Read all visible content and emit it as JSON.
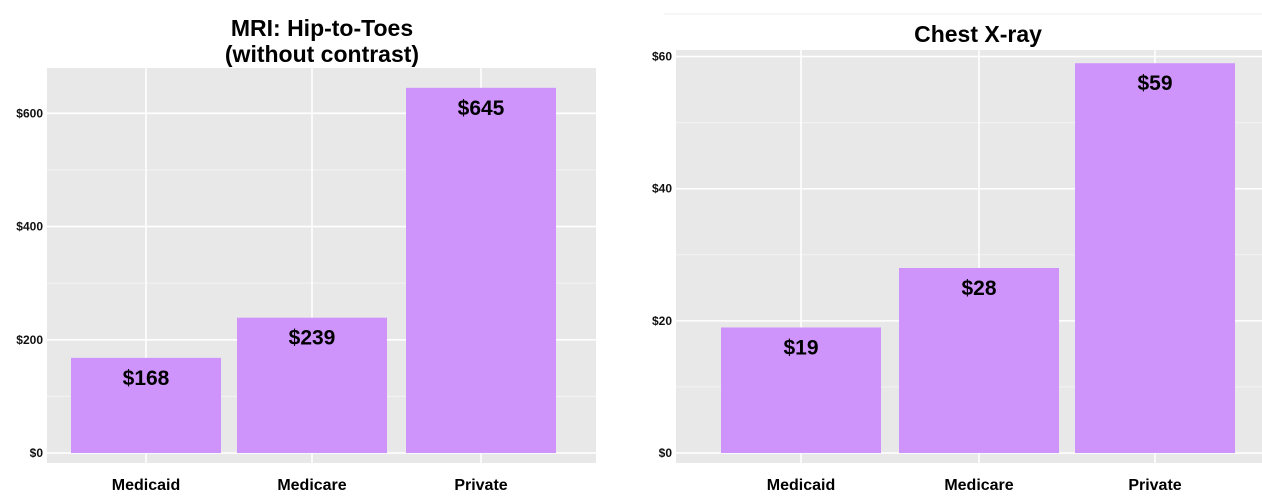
{
  "chart_data": [
    {
      "type": "bar",
      "title": "MRI: Hip-to-Toes",
      "subtitle": "(without contrast)",
      "xlabel": "",
      "ylabel": "",
      "categories": [
        "Medicaid",
        "Medicare",
        "Private"
      ],
      "values": [
        168,
        239,
        645
      ],
      "value_labels": [
        "$168",
        "$239",
        "$645"
      ],
      "ylim": [
        0,
        680
      ],
      "yticks": [
        0,
        200,
        400,
        600
      ],
      "ytick_labels": [
        "$0",
        "$200",
        "$400",
        "$600"
      ],
      "bar_color": "#cf94fb",
      "panel_color": "#e8e8e8",
      "grid": true
    },
    {
      "type": "bar",
      "title": "Chest X-ray",
      "xlabel": "",
      "ylabel": "",
      "categories": [
        "Medicaid",
        "Medicare",
        "Private"
      ],
      "values": [
        19,
        28,
        59
      ],
      "value_labels": [
        "$19",
        "$28",
        "$59"
      ],
      "ylim": [
        0,
        61
      ],
      "yticks": [
        0,
        20,
        40,
        60
      ],
      "ytick_labels": [
        "$0",
        "$20",
        "$40",
        "$60"
      ],
      "bar_color": "#cf94fb",
      "panel_color": "#e8e8e8",
      "grid": true
    }
  ]
}
